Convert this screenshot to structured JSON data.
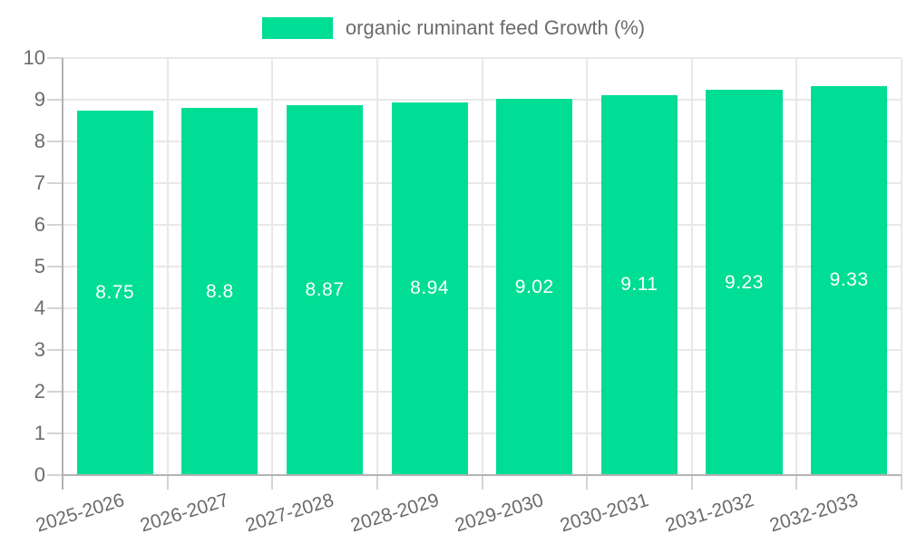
{
  "chart_data": {
    "type": "bar",
    "title": "organic ruminant feed Growth (%)",
    "legend_entries": [
      "organic ruminant feed Growth (%)"
    ],
    "categories": [
      "2025-2026",
      "2026-2027",
      "2027-2028",
      "2028-2029",
      "2029-2030",
      "2030-2031",
      "2031-2032",
      "2032-2033"
    ],
    "values": [
      8.75,
      8.8,
      8.87,
      8.94,
      9.02,
      9.11,
      9.23,
      9.33
    ],
    "value_labels": [
      "8.75",
      "8.8",
      "8.87",
      "8.94",
      "9.02",
      "9.11",
      "9.23",
      "9.33"
    ],
    "xlabel": "",
    "ylabel": "",
    "ylim": [
      0,
      10
    ],
    "yticks": [
      0,
      1,
      2,
      3,
      4,
      5,
      6,
      7,
      8,
      9,
      10
    ],
    "grid": true,
    "legend_position": "top",
    "colors": {
      "bar": "#00DD94",
      "value_label": "#ffffff",
      "axis_text": "#6b6b6b",
      "grid_line": "#e8e8e8",
      "axis_line": "#b3b3b3",
      "tick_line": "#d4d4d4",
      "background": "#ffffff"
    }
  }
}
